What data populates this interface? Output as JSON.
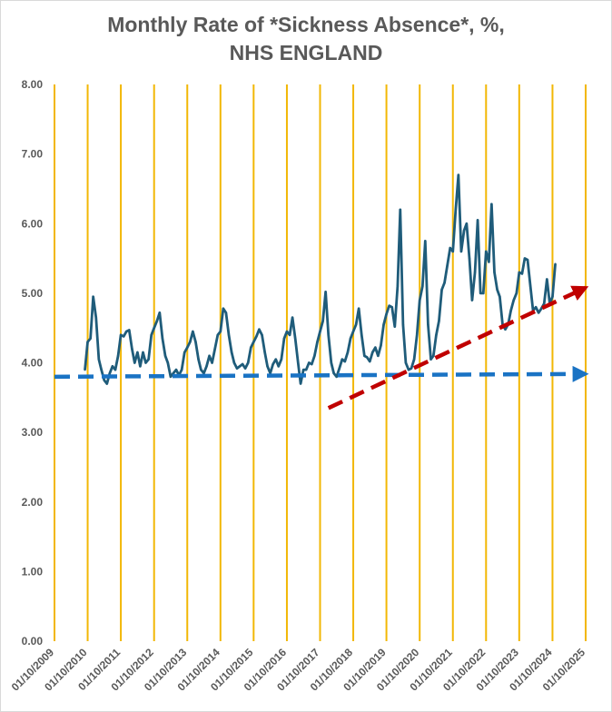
{
  "chart_data": {
    "type": "line",
    "title_line1": "Monthly Rate of *Sickness Absence*, %,",
    "title_line2": "NHS ENGLAND",
    "xlabel": "",
    "ylabel": "",
    "ylim": [
      0,
      8
    ],
    "y_ticks": [
      "0.00",
      "1.00",
      "2.00",
      "3.00",
      "4.00",
      "5.00",
      "6.00",
      "7.00",
      "8.00"
    ],
    "x_range": [
      "2009-10-01",
      "2025-10-01"
    ],
    "x_ticks": [
      "01/10/2009",
      "01/10/2010",
      "01/10/2011",
      "01/10/2012",
      "01/10/2013",
      "01/10/2014",
      "01/10/2015",
      "01/10/2016",
      "01/10/2017",
      "01/10/2018",
      "01/10/2019",
      "01/10/2020",
      "01/10/2021",
      "01/10/2022",
      "01/10/2023",
      "01/10/2024",
      "01/10/2025"
    ],
    "grid": "vertical",
    "colors": {
      "series": "#1f5c7a",
      "grid": "#f2b705",
      "baseline": "#1a73c4",
      "trend": "#c00000",
      "text": "#595959"
    },
    "series": [
      {
        "values": [
          {
            "x": "2010-09-01",
            "y": 3.9
          },
          {
            "x": "2010-10-01",
            "y": 4.3
          },
          {
            "x": "2010-11-01",
            "y": 4.35
          },
          {
            "x": "2010-12-01",
            "y": 4.95
          },
          {
            "x": "2011-01-01",
            "y": 4.65
          },
          {
            "x": "2011-02-01",
            "y": 4.05
          },
          {
            "x": "2011-03-01",
            "y": 3.9
          },
          {
            "x": "2011-04-01",
            "y": 3.75
          },
          {
            "x": "2011-05-01",
            "y": 3.7
          },
          {
            "x": "2011-06-01",
            "y": 3.85
          },
          {
            "x": "2011-07-01",
            "y": 3.95
          },
          {
            "x": "2011-08-01",
            "y": 3.9
          },
          {
            "x": "2011-09-01",
            "y": 4.1
          },
          {
            "x": "2011-10-01",
            "y": 4.4
          },
          {
            "x": "2011-11-01",
            "y": 4.38
          },
          {
            "x": "2011-12-01",
            "y": 4.45
          },
          {
            "x": "2012-01-01",
            "y": 4.47
          },
          {
            "x": "2012-02-01",
            "y": 4.2
          },
          {
            "x": "2012-03-01",
            "y": 4.0
          },
          {
            "x": "2012-04-01",
            "y": 4.15
          },
          {
            "x": "2012-05-01",
            "y": 3.95
          },
          {
            "x": "2012-06-01",
            "y": 4.15
          },
          {
            "x": "2012-07-01",
            "y": 4.0
          },
          {
            "x": "2012-08-01",
            "y": 4.05
          },
          {
            "x": "2012-09-01",
            "y": 4.4
          },
          {
            "x": "2012-10-01",
            "y": 4.5
          },
          {
            "x": "2012-11-01",
            "y": 4.6
          },
          {
            "x": "2012-12-01",
            "y": 4.72
          },
          {
            "x": "2013-01-01",
            "y": 4.35
          },
          {
            "x": "2013-02-01",
            "y": 4.1
          },
          {
            "x": "2013-03-01",
            "y": 4.0
          },
          {
            "x": "2013-04-01",
            "y": 3.8
          },
          {
            "x": "2013-05-01",
            "y": 3.85
          },
          {
            "x": "2013-06-01",
            "y": 3.9
          },
          {
            "x": "2013-07-01",
            "y": 3.82
          },
          {
            "x": "2013-08-01",
            "y": 3.9
          },
          {
            "x": "2013-09-01",
            "y": 4.15
          },
          {
            "x": "2013-10-01",
            "y": 4.22
          },
          {
            "x": "2013-11-01",
            "y": 4.3
          },
          {
            "x": "2013-12-01",
            "y": 4.45
          },
          {
            "x": "2014-01-01",
            "y": 4.3
          },
          {
            "x": "2014-02-01",
            "y": 4.05
          },
          {
            "x": "2014-03-01",
            "y": 3.9
          },
          {
            "x": "2014-04-01",
            "y": 3.85
          },
          {
            "x": "2014-05-01",
            "y": 3.95
          },
          {
            "x": "2014-06-01",
            "y": 4.1
          },
          {
            "x": "2014-07-01",
            "y": 4.0
          },
          {
            "x": "2014-08-01",
            "y": 4.2
          },
          {
            "x": "2014-09-01",
            "y": 4.4
          },
          {
            "x": "2014-10-01",
            "y": 4.45
          },
          {
            "x": "2014-11-01",
            "y": 4.78
          },
          {
            "x": "2014-12-01",
            "y": 4.72
          },
          {
            "x": "2015-01-01",
            "y": 4.4
          },
          {
            "x": "2015-02-01",
            "y": 4.15
          },
          {
            "x": "2015-03-01",
            "y": 4.0
          },
          {
            "x": "2015-04-01",
            "y": 3.92
          },
          {
            "x": "2015-05-01",
            "y": 3.95
          },
          {
            "x": "2015-06-01",
            "y": 3.98
          },
          {
            "x": "2015-07-01",
            "y": 3.92
          },
          {
            "x": "2015-08-01",
            "y": 4.0
          },
          {
            "x": "2015-09-01",
            "y": 4.22
          },
          {
            "x": "2015-10-01",
            "y": 4.3
          },
          {
            "x": "2015-11-01",
            "y": 4.38
          },
          {
            "x": "2015-12-01",
            "y": 4.48
          },
          {
            "x": "2016-01-01",
            "y": 4.4
          },
          {
            "x": "2016-02-01",
            "y": 4.15
          },
          {
            "x": "2016-03-01",
            "y": 3.95
          },
          {
            "x": "2016-04-01",
            "y": 3.85
          },
          {
            "x": "2016-05-01",
            "y": 3.98
          },
          {
            "x": "2016-06-01",
            "y": 4.05
          },
          {
            "x": "2016-07-01",
            "y": 3.95
          },
          {
            "x": "2016-08-01",
            "y": 4.05
          },
          {
            "x": "2016-09-01",
            "y": 4.35
          },
          {
            "x": "2016-10-01",
            "y": 4.45
          },
          {
            "x": "2016-11-01",
            "y": 4.4
          },
          {
            "x": "2016-12-01",
            "y": 4.65
          },
          {
            "x": "2017-01-01",
            "y": 4.35
          },
          {
            "x": "2017-02-01",
            "y": 4.0
          },
          {
            "x": "2017-03-01",
            "y": 3.7
          },
          {
            "x": "2017-04-01",
            "y": 3.9
          },
          {
            "x": "2017-05-01",
            "y": 3.9
          },
          {
            "x": "2017-06-01",
            "y": 4.0
          },
          {
            "x": "2017-07-01",
            "y": 3.98
          },
          {
            "x": "2017-08-01",
            "y": 4.1
          },
          {
            "x": "2017-09-01",
            "y": 4.3
          },
          {
            "x": "2017-10-01",
            "y": 4.45
          },
          {
            "x": "2017-11-01",
            "y": 4.6
          },
          {
            "x": "2017-12-01",
            "y": 5.02
          },
          {
            "x": "2018-01-01",
            "y": 4.4
          },
          {
            "x": "2018-02-01",
            "y": 4.0
          },
          {
            "x": "2018-03-01",
            "y": 3.85
          },
          {
            "x": "2018-04-01",
            "y": 3.8
          },
          {
            "x": "2018-05-01",
            "y": 3.92
          },
          {
            "x": "2018-06-01",
            "y": 4.05
          },
          {
            "x": "2018-07-01",
            "y": 4.02
          },
          {
            "x": "2018-08-01",
            "y": 4.15
          },
          {
            "x": "2018-09-01",
            "y": 4.35
          },
          {
            "x": "2018-10-01",
            "y": 4.45
          },
          {
            "x": "2018-11-01",
            "y": 4.55
          },
          {
            "x": "2018-12-01",
            "y": 4.78
          },
          {
            "x": "2019-01-01",
            "y": 4.4
          },
          {
            "x": "2019-02-01",
            "y": 4.1
          },
          {
            "x": "2019-03-01",
            "y": 4.08
          },
          {
            "x": "2019-04-01",
            "y": 4.02
          },
          {
            "x": "2019-05-01",
            "y": 4.15
          },
          {
            "x": "2019-06-01",
            "y": 4.22
          },
          {
            "x": "2019-07-01",
            "y": 4.1
          },
          {
            "x": "2019-08-01",
            "y": 4.25
          },
          {
            "x": "2019-09-01",
            "y": 4.55
          },
          {
            "x": "2019-10-01",
            "y": 4.7
          },
          {
            "x": "2019-11-01",
            "y": 4.82
          },
          {
            "x": "2019-12-01",
            "y": 4.8
          },
          {
            "x": "2020-01-01",
            "y": 4.52
          },
          {
            "x": "2020-02-01",
            "y": 5.1
          },
          {
            "x": "2020-03-01",
            "y": 6.2
          },
          {
            "x": "2020-04-01",
            "y": 4.55
          },
          {
            "x": "2020-05-01",
            "y": 4.0
          },
          {
            "x": "2020-06-01",
            "y": 3.9
          },
          {
            "x": "2020-07-01",
            "y": 3.92
          },
          {
            "x": "2020-08-01",
            "y": 4.05
          },
          {
            "x": "2020-09-01",
            "y": 4.4
          },
          {
            "x": "2020-10-01",
            "y": 4.9
          },
          {
            "x": "2020-11-01",
            "y": 5.1
          },
          {
            "x": "2020-12-01",
            "y": 5.75
          },
          {
            "x": "2021-01-01",
            "y": 4.55
          },
          {
            "x": "2021-02-01",
            "y": 4.05
          },
          {
            "x": "2021-03-01",
            "y": 4.1
          },
          {
            "x": "2021-04-01",
            "y": 4.4
          },
          {
            "x": "2021-05-01",
            "y": 4.6
          },
          {
            "x": "2021-06-01",
            "y": 5.05
          },
          {
            "x": "2021-07-01",
            "y": 5.15
          },
          {
            "x": "2021-08-01",
            "y": 5.4
          },
          {
            "x": "2021-09-01",
            "y": 5.65
          },
          {
            "x": "2021-10-01",
            "y": 5.6
          },
          {
            "x": "2021-11-01",
            "y": 6.2
          },
          {
            "x": "2021-12-01",
            "y": 6.7
          },
          {
            "x": "2022-01-01",
            "y": 5.6
          },
          {
            "x": "2022-02-01",
            "y": 5.9
          },
          {
            "x": "2022-03-01",
            "y": 6.0
          },
          {
            "x": "2022-04-01",
            "y": 5.5
          },
          {
            "x": "2022-05-01",
            "y": 4.9
          },
          {
            "x": "2022-06-01",
            "y": 5.3
          },
          {
            "x": "2022-07-01",
            "y": 6.05
          },
          {
            "x": "2022-08-01",
            "y": 5.0
          },
          {
            "x": "2022-09-01",
            "y": 5.0
          },
          {
            "x": "2022-10-01",
            "y": 5.6
          },
          {
            "x": "2022-11-01",
            "y": 5.45
          },
          {
            "x": "2022-12-01",
            "y": 6.28
          },
          {
            "x": "2023-01-01",
            "y": 5.3
          },
          {
            "x": "2023-02-01",
            "y": 5.05
          },
          {
            "x": "2023-03-01",
            "y": 4.95
          },
          {
            "x": "2023-04-01",
            "y": 4.55
          },
          {
            "x": "2023-05-01",
            "y": 4.48
          },
          {
            "x": "2023-06-01",
            "y": 4.55
          },
          {
            "x": "2023-07-01",
            "y": 4.75
          },
          {
            "x": "2023-08-01",
            "y": 4.9
          },
          {
            "x": "2023-09-01",
            "y": 5.0
          },
          {
            "x": "2023-10-01",
            "y": 5.3
          },
          {
            "x": "2023-11-01",
            "y": 5.28
          },
          {
            "x": "2023-12-01",
            "y": 5.5
          },
          {
            "x": "2024-01-01",
            "y": 5.48
          },
          {
            "x": "2024-02-01",
            "y": 5.1
          },
          {
            "x": "2024-03-01",
            "y": 4.75
          },
          {
            "x": "2024-04-01",
            "y": 4.8
          },
          {
            "x": "2024-05-01",
            "y": 4.72
          },
          {
            "x": "2024-06-01",
            "y": 4.78
          },
          {
            "x": "2024-07-01",
            "y": 4.85
          },
          {
            "x": "2024-08-01",
            "y": 5.2
          },
          {
            "x": "2024-09-01",
            "y": 4.85
          },
          {
            "x": "2024-10-01",
            "y": 4.95
          },
          {
            "x": "2024-11-01",
            "y": 5.42
          }
        ]
      }
    ],
    "annotations": [
      {
        "kind": "dashed-arrow",
        "color": "#1a73c4",
        "from": {
          "x": "2009-10-01",
          "y": 3.8
        },
        "to": {
          "x": "2025-10-01",
          "y": 3.84
        }
      },
      {
        "kind": "dashed-arrow",
        "color": "#c00000",
        "from": {
          "x": "2018-01-01",
          "y": 3.35
        },
        "to": {
          "x": "2025-10-01",
          "y": 5.08
        }
      }
    ]
  }
}
